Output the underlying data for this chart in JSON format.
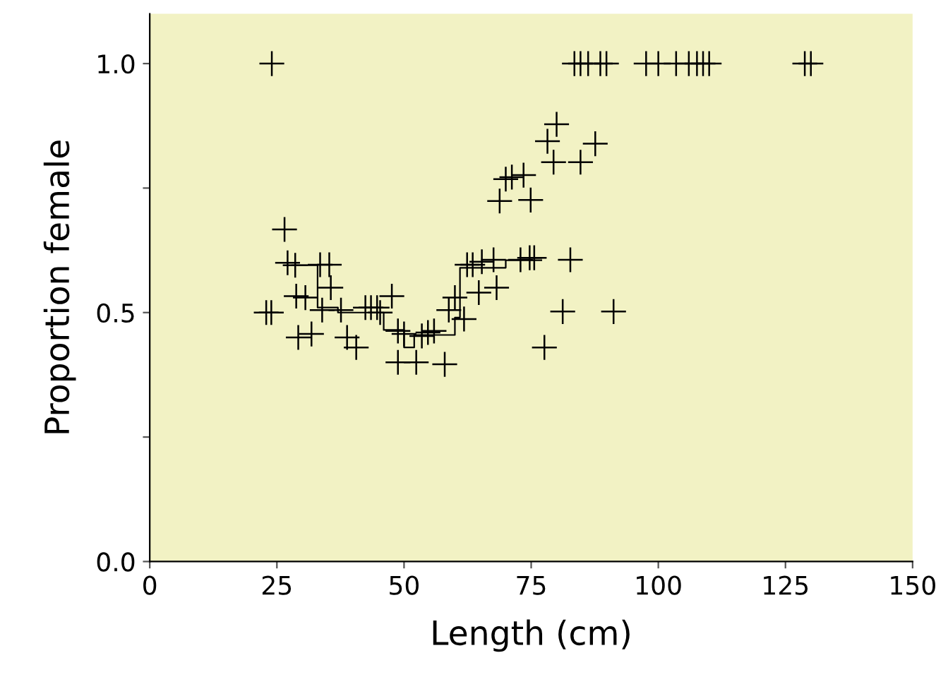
{
  "chart_data": {
    "type": "scatter",
    "xlabel": "Length (cm)",
    "ylabel": "Proportion female",
    "xlim": [
      0,
      150
    ],
    "ylim": [
      0,
      1.1
    ],
    "xticks": [
      0,
      25,
      50,
      75,
      100,
      125,
      150
    ],
    "yticks": [
      {
        "value": 0,
        "label": "0.0"
      },
      {
        "value": 0.25,
        "label": null
      },
      {
        "value": 0.5,
        "label": "0.5"
      },
      {
        "value": 0.75,
        "label": null
      },
      {
        "value": 1,
        "label": "1.0"
      }
    ],
    "grid": false,
    "series": [
      {
        "marker": "cross",
        "color": "#000000",
        "x": [
          24,
          83.5,
          84.7,
          86.2,
          88.6,
          89.8,
          97.6,
          100,
          103.5,
          106,
          107.6,
          108.8,
          110,
          128.8,
          130,
          22.9,
          23.9,
          26.5,
          27.1,
          28.6,
          28.8,
          30.6,
          29.2,
          31.8,
          33.5,
          35.3,
          33.9,
          35.6,
          37.6,
          38.8,
          40.6,
          42.4,
          43.5,
          44.7,
          45.3,
          47.6,
          48.8,
          48.8,
          52.4,
          50,
          53.5,
          54.7,
          55.9,
          58,
          58.8,
          60,
          61.8,
          62.4,
          63.5,
          65.3,
          67.6,
          64.7,
          68.2,
          68.8,
          70,
          71.2,
          73.5,
          74.9,
          72.9,
          74.7,
          75.6,
          77.6,
          78.2,
          80,
          79.4,
          84.7,
          87.6,
          81.2,
          82.7,
          91.2
        ],
        "values": [
          1,
          1,
          1,
          1,
          1,
          1,
          1,
          1,
          1,
          1,
          1,
          1,
          1,
          1,
          1,
          0.5,
          0.5,
          0.667,
          0.6,
          0.595,
          0.533,
          0.53,
          0.45,
          0.457,
          0.596,
          0.596,
          0.505,
          0.55,
          0.505,
          0.45,
          0.43,
          0.51,
          0.51,
          0.51,
          0.5,
          0.533,
          0.463,
          0.4,
          0.4,
          0.457,
          0.453,
          0.46,
          0.463,
          0.396,
          0.505,
          0.53,
          0.487,
          0.596,
          0.596,
          0.602,
          0.606,
          0.54,
          0.55,
          0.724,
          0.768,
          0.772,
          0.776,
          0.726,
          0.606,
          0.61,
          0.61,
          0.43,
          0.844,
          0.878,
          0.802,
          0.802,
          0.839,
          0.502,
          0.606,
          0.502
        ]
      },
      {
        "type": "step",
        "color": "#000000",
        "line_style": "solid",
        "x": [
          28,
          33,
          37,
          46,
          50,
          52,
          60,
          61,
          70,
          77
        ],
        "values": [
          0.595,
          0.51,
          0.5,
          0.465,
          0.43,
          0.455,
          0.49,
          0.59,
          0.605,
          0.605
        ]
      }
    ]
  }
}
